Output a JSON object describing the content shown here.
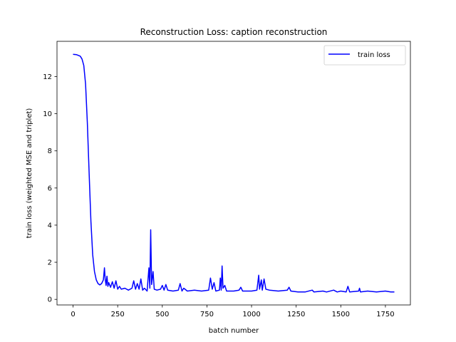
{
  "chart_data": {
    "type": "line",
    "title": "Reconstruction Loss: caption reconstruction",
    "xlabel": "batch number",
    "ylabel": "train loss (weighted MSE and triplet)",
    "xlim": [
      -90,
      1890
    ],
    "ylim": [
      -0.3,
      13.9
    ],
    "x_ticks": [
      0,
      250,
      500,
      750,
      1000,
      1250,
      1500,
      1750
    ],
    "y_ticks": [
      0,
      2,
      4,
      6,
      8,
      10,
      12
    ],
    "grid": false,
    "legend_position": "top-right",
    "series": [
      {
        "name": "train loss",
        "color": "#0000ff",
        "points": [
          [
            0,
            13.2
          ],
          [
            20,
            13.18
          ],
          [
            40,
            13.1
          ],
          [
            50,
            12.95
          ],
          [
            60,
            12.6
          ],
          [
            70,
            11.6
          ],
          [
            80,
            9.5
          ],
          [
            90,
            6.8
          ],
          [
            100,
            4.2
          ],
          [
            110,
            2.4
          ],
          [
            120,
            1.5
          ],
          [
            130,
            1.05
          ],
          [
            140,
            0.85
          ],
          [
            150,
            0.78
          ],
          [
            160,
            0.85
          ],
          [
            170,
            1.05
          ],
          [
            176,
            1.7
          ],
          [
            180,
            1.1
          ],
          [
            185,
            0.75
          ],
          [
            190,
            1.25
          ],
          [
            195,
            0.7
          ],
          [
            200,
            0.9
          ],
          [
            210,
            0.65
          ],
          [
            220,
            0.95
          ],
          [
            230,
            0.6
          ],
          [
            240,
            1.0
          ],
          [
            250,
            0.55
          ],
          [
            260,
            0.7
          ],
          [
            270,
            0.55
          ],
          [
            290,
            0.6
          ],
          [
            310,
            0.5
          ],
          [
            330,
            0.6
          ],
          [
            340,
            1.0
          ],
          [
            350,
            0.55
          ],
          [
            360,
            0.85
          ],
          [
            370,
            0.55
          ],
          [
            380,
            1.1
          ],
          [
            390,
            0.5
          ],
          [
            400,
            0.6
          ],
          [
            415,
            0.45
          ],
          [
            425,
            1.7
          ],
          [
            430,
            0.6
          ],
          [
            435,
            3.75
          ],
          [
            440,
            0.8
          ],
          [
            448,
            1.5
          ],
          [
            455,
            0.55
          ],
          [
            470,
            0.5
          ],
          [
            490,
            0.55
          ],
          [
            500,
            0.75
          ],
          [
            510,
            0.5
          ],
          [
            520,
            0.8
          ],
          [
            530,
            0.5
          ],
          [
            560,
            0.45
          ],
          [
            590,
            0.5
          ],
          [
            600,
            0.85
          ],
          [
            610,
            0.45
          ],
          [
            620,
            0.6
          ],
          [
            640,
            0.45
          ],
          [
            680,
            0.5
          ],
          [
            720,
            0.45
          ],
          [
            760,
            0.5
          ],
          [
            770,
            1.15
          ],
          [
            780,
            0.55
          ],
          [
            790,
            0.9
          ],
          [
            800,
            0.45
          ],
          [
            820,
            0.5
          ],
          [
            825,
            1.15
          ],
          [
            830,
            0.5
          ],
          [
            835,
            1.8
          ],
          [
            840,
            0.6
          ],
          [
            850,
            0.75
          ],
          [
            860,
            0.45
          ],
          [
            900,
            0.45
          ],
          [
            930,
            0.5
          ],
          [
            940,
            0.65
          ],
          [
            950,
            0.45
          ],
          [
            1000,
            0.45
          ],
          [
            1030,
            0.5
          ],
          [
            1040,
            1.3
          ],
          [
            1045,
            0.55
          ],
          [
            1055,
            1.05
          ],
          [
            1060,
            0.5
          ],
          [
            1070,
            1.1
          ],
          [
            1080,
            0.55
          ],
          [
            1100,
            0.5
          ],
          [
            1150,
            0.45
          ],
          [
            1200,
            0.5
          ],
          [
            1210,
            0.65
          ],
          [
            1220,
            0.45
          ],
          [
            1260,
            0.4
          ],
          [
            1300,
            0.4
          ],
          [
            1340,
            0.5
          ],
          [
            1350,
            0.4
          ],
          [
            1400,
            0.45
          ],
          [
            1420,
            0.4
          ],
          [
            1460,
            0.5
          ],
          [
            1480,
            0.4
          ],
          [
            1500,
            0.45
          ],
          [
            1530,
            0.4
          ],
          [
            1540,
            0.7
          ],
          [
            1550,
            0.4
          ],
          [
            1600,
            0.45
          ],
          [
            1605,
            0.6
          ],
          [
            1610,
            0.4
          ],
          [
            1650,
            0.45
          ],
          [
            1700,
            0.4
          ],
          [
            1750,
            0.45
          ],
          [
            1780,
            0.4
          ],
          [
            1800,
            0.4
          ]
        ]
      }
    ]
  }
}
